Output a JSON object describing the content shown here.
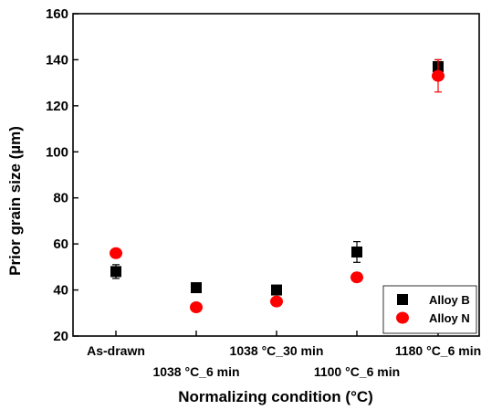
{
  "chart_data": {
    "type": "scatter",
    "categories": [
      "As-drawn",
      "1038 °C_6 min",
      "1038 °C_30 min",
      "1100 °C_6 min",
      "1180 °C_6 min"
    ],
    "xlabel": "Normalizing condition (°C)",
    "ylabel": "Prior grain size (µm)",
    "ylim": [
      20,
      160
    ],
    "yticks": [
      20,
      40,
      60,
      80,
      100,
      120,
      140,
      160
    ],
    "grid": false,
    "legend_position": "bottom-right",
    "series": [
      {
        "name": "Alloy B",
        "marker": "square",
        "color": "#000000",
        "values": [
          48,
          41,
          40,
          56.5,
          137
        ],
        "errors": [
          3,
          1,
          1,
          4.5,
          3
        ]
      },
      {
        "name": "Alloy N",
        "marker": "circle",
        "color": "#ff0000",
        "values": [
          56,
          32.5,
          35,
          45.5,
          133
        ],
        "errors": [
          0,
          0,
          0,
          2,
          7
        ]
      }
    ]
  }
}
